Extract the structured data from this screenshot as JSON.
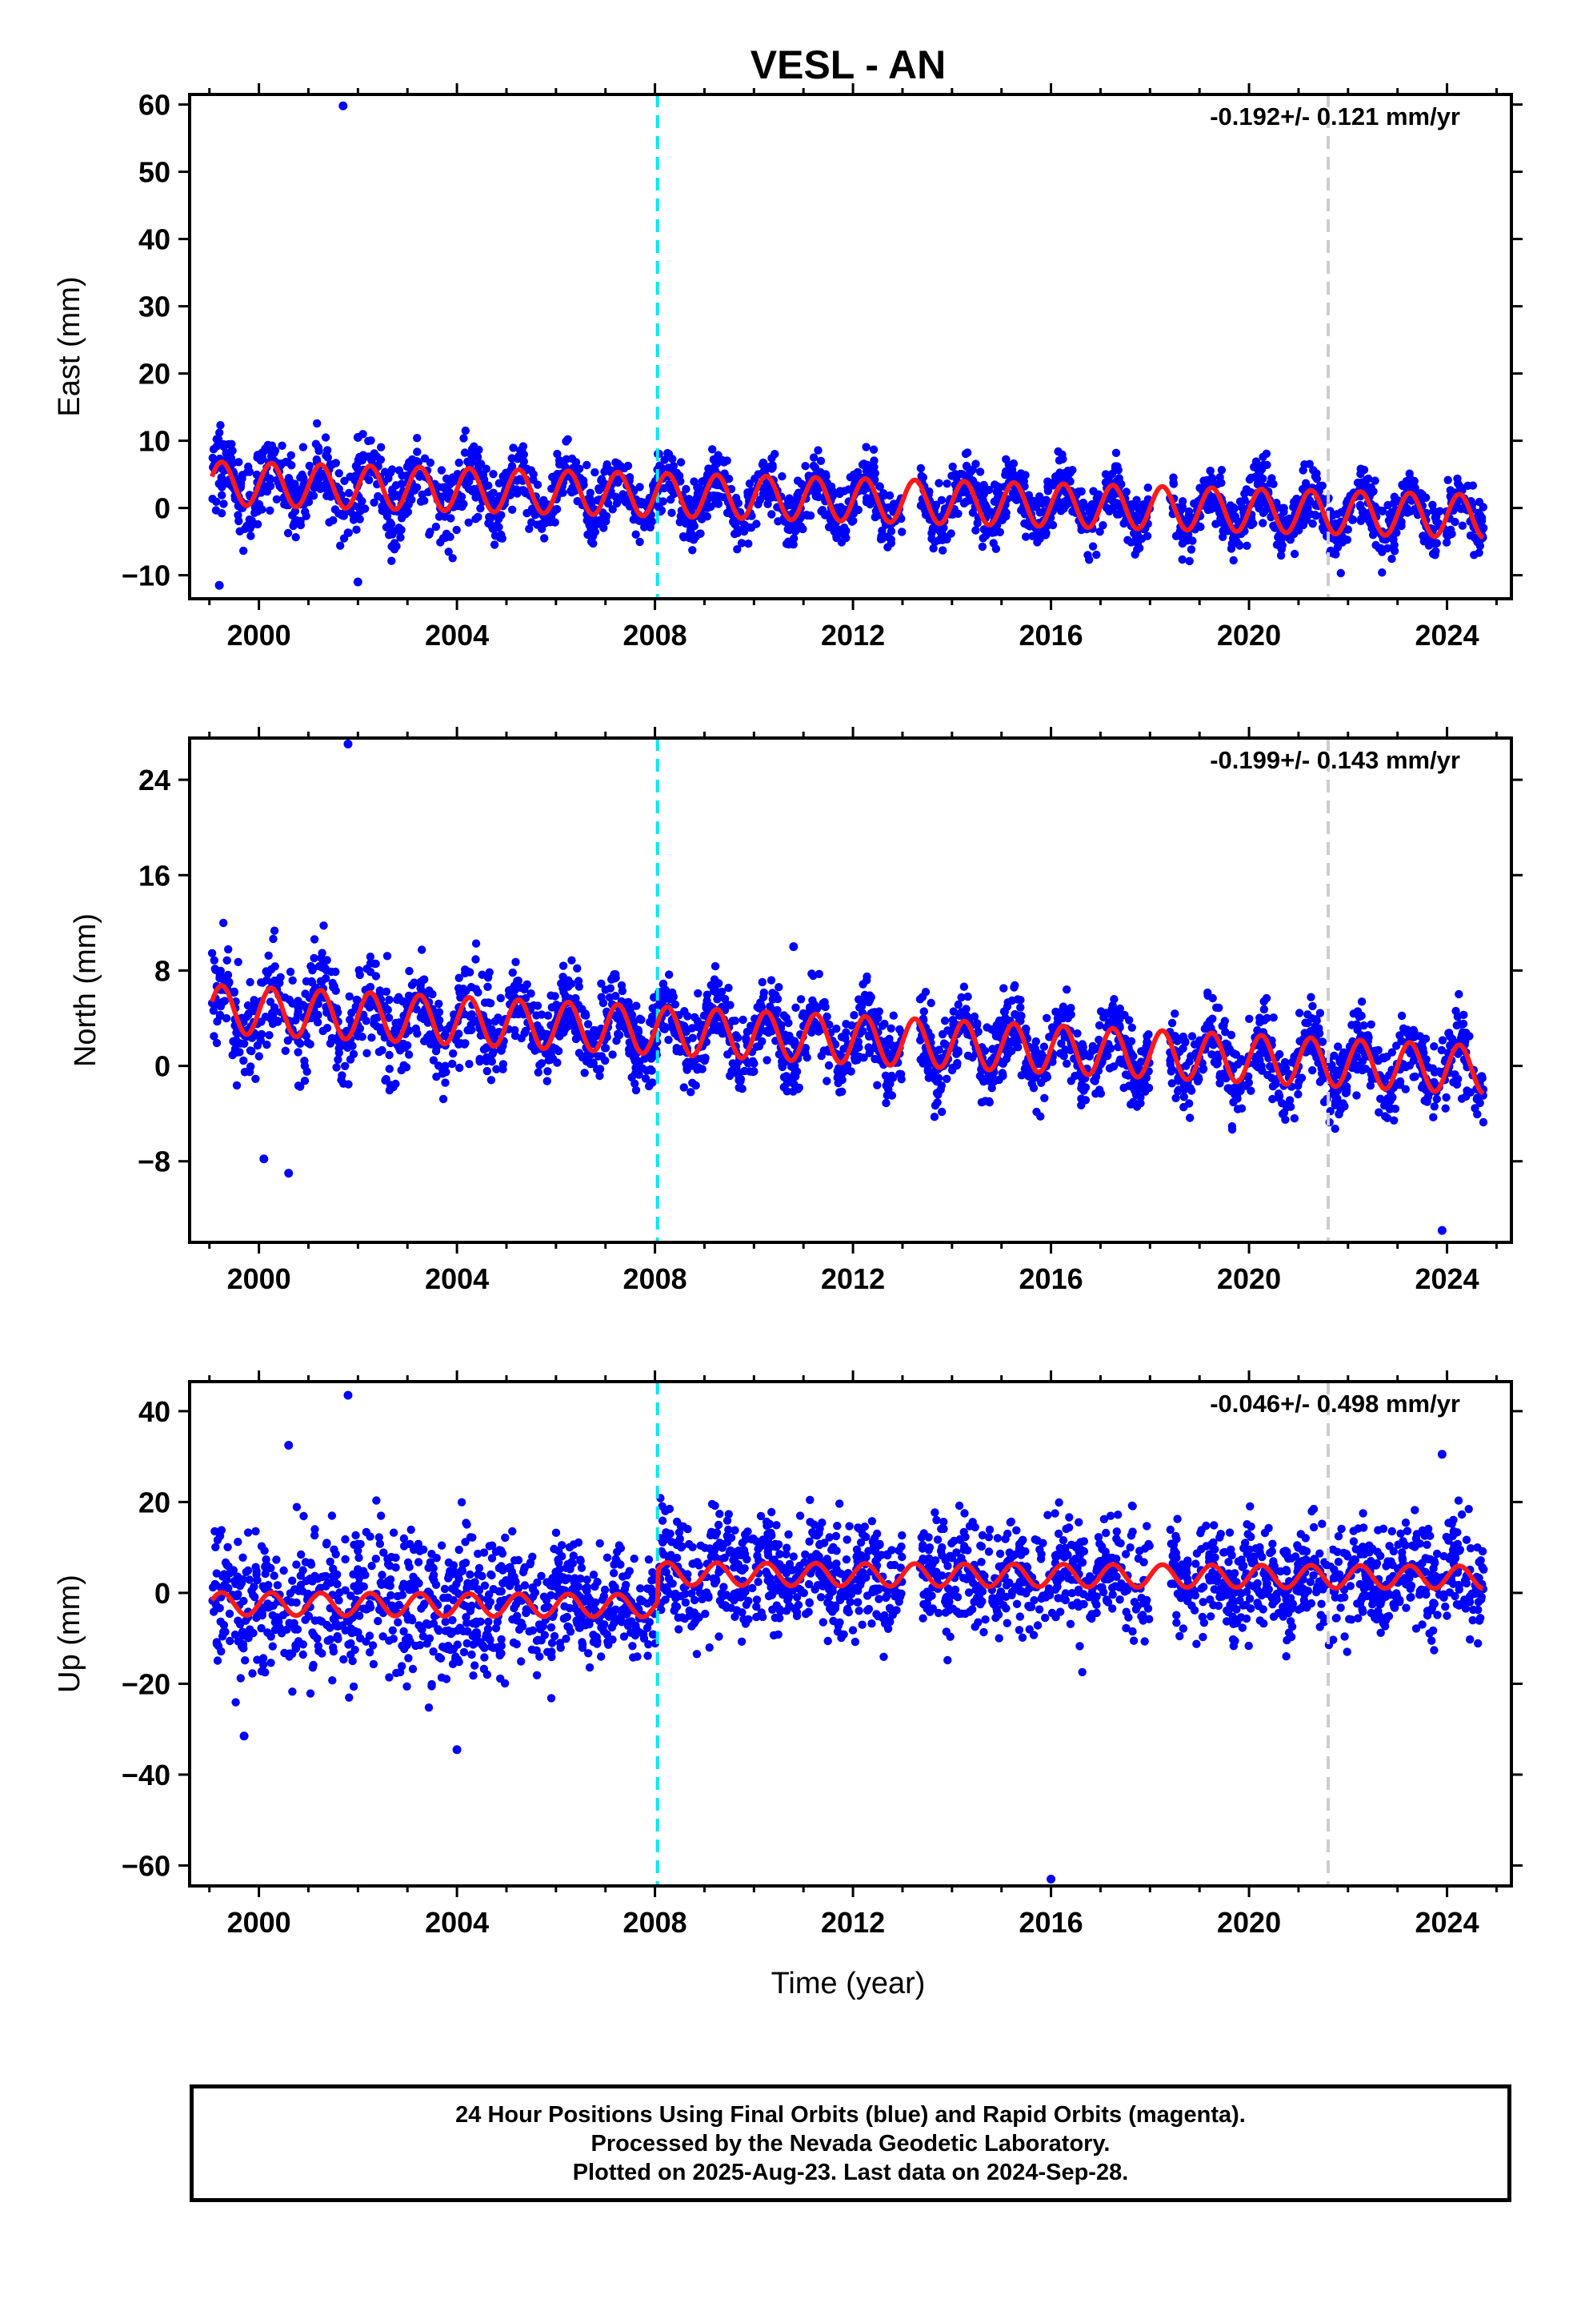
{
  "chart_data": [
    {
      "type": "scatter",
      "title": "VESL - AN",
      "ylabel": "East (mm)",
      "xlabel": "",
      "xlim": [
        1998.6,
        2025.3
      ],
      "ylim": [
        -13.5,
        61.5
      ],
      "xticks": [
        2000,
        2004,
        2008,
        2012,
        2016,
        2020,
        2024
      ],
      "xtick_labels": [
        "2000",
        "2004",
        "2008",
        "2012",
        "2016",
        "2020",
        "2024"
      ],
      "yticks": [
        -10,
        0,
        10,
        20,
        30,
        40,
        50,
        60
      ],
      "ytick_labels": [
        "−10",
        "0",
        "10",
        "20",
        "30",
        "40",
        "50",
        "60"
      ],
      "annotation": "-0.192+/- 0.121 mm/yr",
      "model": {
        "offset": 1.2,
        "rate": -0.192,
        "amplitude": 3.2
      },
      "scatter_sigma": 2.2,
      "outliers": [
        {
          "x": 2001.7,
          "y": 59.8
        },
        {
          "x": 2002.0,
          "y": 10.5
        },
        {
          "x": 1999.2,
          "y": -11.5
        },
        {
          "x": 2002.0,
          "y": -11.0
        }
      ],
      "marker_lines": [
        {
          "x": 2008.05,
          "color": "#00e8f0"
        },
        {
          "x": 2021.6,
          "color": "#cccccc"
        }
      ]
    },
    {
      "type": "scatter",
      "title": "",
      "ylabel": "North (mm)",
      "xlabel": "",
      "xlim": [
        1998.6,
        2025.3
      ],
      "ylim": [
        -14.8,
        27.5
      ],
      "xticks": [
        2000,
        2004,
        2008,
        2012,
        2016,
        2020,
        2024
      ],
      "xtick_labels": [
        "2000",
        "2004",
        "2008",
        "2012",
        "2016",
        "2020",
        "2024"
      ],
      "yticks": [
        -8,
        0,
        8,
        16,
        24
      ],
      "ytick_labels": [
        "−8",
        "0",
        "8",
        "16",
        "24"
      ],
      "annotation": "-0.199+/- 0.143 mm/yr",
      "model": {
        "offset": 2.2,
        "rate": -0.199,
        "amplitude": 2.0
      },
      "scatter_sigma": 1.6,
      "outliers": [
        {
          "x": 2001.8,
          "y": 27.0
        },
        {
          "x": 2023.9,
          "y": -13.8
        },
        {
          "x": 2000.6,
          "y": -9.0
        },
        {
          "x": 2000.1,
          "y": -7.8
        },
        {
          "x": 2010.8,
          "y": 10.0
        }
      ],
      "marker_lines": [
        {
          "x": 2008.05,
          "color": "#00e8f0"
        },
        {
          "x": 2021.6,
          "color": "#cccccc"
        }
      ]
    },
    {
      "type": "scatter",
      "title": "",
      "ylabel": "Up (mm)",
      "xlabel": "Time (year)",
      "xlim": [
        1998.6,
        2025.3
      ],
      "ylim": [
        -64.5,
        46.5
      ],
      "xticks": [
        2000,
        2004,
        2008,
        2012,
        2016,
        2020,
        2024
      ],
      "xtick_labels": [
        "2000",
        "2004",
        "2008",
        "2012",
        "2016",
        "2020",
        "2024"
      ],
      "yticks": [
        -60,
        -40,
        -20,
        0,
        20,
        40
      ],
      "ytick_labels": [
        "−60",
        "−40",
        "−20",
        "0",
        "20",
        "40"
      ],
      "annotation": "-0.046+/- 0.498 mm/yr",
      "model": {
        "offset": -3.0,
        "rate": -0.046,
        "amplitude": 2.5,
        "step_at": 2008.05,
        "step": 7.0
      },
      "scatter_sigma": 6.0,
      "outliers": [
        {
          "x": 2001.8,
          "y": 43.5
        },
        {
          "x": 2016.0,
          "y": -63.0
        },
        {
          "x": 2023.9,
          "y": 30.5
        },
        {
          "x": 2000.6,
          "y": 32.5
        },
        {
          "x": 2004.0,
          "y": -34.5
        },
        {
          "x": 1999.7,
          "y": -31.5
        }
      ],
      "marker_lines": [
        {
          "x": 2008.05,
          "color": "#00e8f0"
        },
        {
          "x": 2021.6,
          "color": "#cccccc"
        }
      ]
    }
  ],
  "colors": {
    "points": "#0000ff",
    "model": "#ff1a1a",
    "cyan_line": "#00e8f0",
    "grey_line": "#cccccc"
  },
  "caption": {
    "line1": "24 Hour Positions Using Final Orbits (blue) and Rapid Orbits (magenta).",
    "line2": "Processed by the Nevada Geodetic Laboratory.",
    "line3": "Plotted on 2025-Aug-23. Last data on 2024-Sep-28."
  }
}
